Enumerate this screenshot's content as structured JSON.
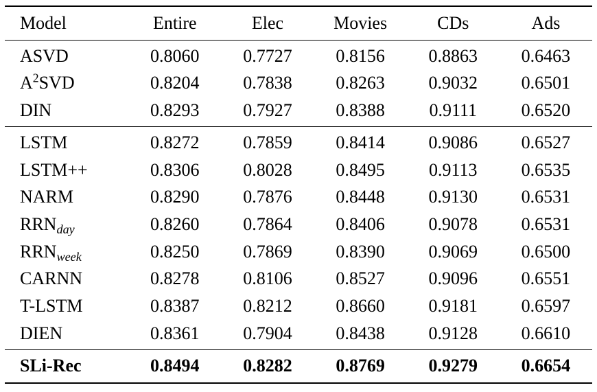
{
  "table": {
    "headers": [
      "Model",
      "Entire",
      "Elec",
      "Movies",
      "CDs",
      "Ads"
    ],
    "rows": [
      {
        "model": {
          "pre": "ASVD"
        },
        "values": [
          "0.8060",
          "0.7727",
          "0.8156",
          "0.8863",
          "0.6463"
        ]
      },
      {
        "model": {
          "pre": "A",
          "sup": "2",
          "post": "SVD"
        },
        "values": [
          "0.8204",
          "0.7838",
          "0.8263",
          "0.9032",
          "0.6501"
        ]
      },
      {
        "model": {
          "pre": "DIN"
        },
        "values": [
          "0.8293",
          "0.7927",
          "0.8388",
          "0.9111",
          "0.6520"
        ]
      },
      {
        "model": {
          "pre": "LSTM"
        },
        "values": [
          "0.8272",
          "0.7859",
          "0.8414",
          "0.9086",
          "0.6527"
        ]
      },
      {
        "model": {
          "pre": "LSTM++"
        },
        "values": [
          "0.8306",
          "0.8028",
          "0.8495",
          "0.9113",
          "0.6535"
        ]
      },
      {
        "model": {
          "pre": "NARM"
        },
        "values": [
          "0.8290",
          "0.7876",
          "0.8448",
          "0.9130",
          "0.6531"
        ]
      },
      {
        "model": {
          "pre": "RRN",
          "sub": "day"
        },
        "values": [
          "0.8260",
          "0.7864",
          "0.8406",
          "0.9078",
          "0.6531"
        ]
      },
      {
        "model": {
          "pre": "RRN",
          "sub": "week"
        },
        "values": [
          "0.8250",
          "0.7869",
          "0.8390",
          "0.9069",
          "0.6500"
        ]
      },
      {
        "model": {
          "pre": "CARNN"
        },
        "values": [
          "0.8278",
          "0.8106",
          "0.8527",
          "0.9096",
          "0.6551"
        ]
      },
      {
        "model": {
          "pre": "T-LSTM"
        },
        "values": [
          "0.8387",
          "0.8212",
          "0.8660",
          "0.9181",
          "0.6597"
        ]
      },
      {
        "model": {
          "pre": "DIEN"
        },
        "values": [
          "0.8361",
          "0.7904",
          "0.8438",
          "0.9128",
          "0.6610"
        ]
      },
      {
        "model": {
          "pre": "SLi-Rec"
        },
        "values": [
          "0.8494",
          "0.8282",
          "0.8769",
          "0.9279",
          "0.6654"
        ]
      }
    ]
  },
  "chart_data": {
    "type": "table",
    "columns": [
      "Model",
      "Entire",
      "Elec",
      "Movies",
      "CDs",
      "Ads"
    ],
    "rows": [
      [
        "ASVD",
        0.806,
        0.7727,
        0.8156,
        0.8863,
        0.6463
      ],
      [
        "A2SVD",
        0.8204,
        0.7838,
        0.8263,
        0.9032,
        0.6501
      ],
      [
        "DIN",
        0.8293,
        0.7927,
        0.8388,
        0.9111,
        0.652
      ],
      [
        "LSTM",
        0.8272,
        0.7859,
        0.8414,
        0.9086,
        0.6527
      ],
      [
        "LSTM++",
        0.8306,
        0.8028,
        0.8495,
        0.9113,
        0.6535
      ],
      [
        "NARM",
        0.829,
        0.7876,
        0.8448,
        0.913,
        0.6531
      ],
      [
        "RRN_day",
        0.826,
        0.7864,
        0.8406,
        0.9078,
        0.6531
      ],
      [
        "RRN_week",
        0.825,
        0.7869,
        0.839,
        0.9069,
        0.65
      ],
      [
        "CARNN",
        0.8278,
        0.8106,
        0.8527,
        0.9096,
        0.6551
      ],
      [
        "T-LSTM",
        0.8387,
        0.8212,
        0.866,
        0.9181,
        0.6597
      ],
      [
        "DIEN",
        0.8361,
        0.7904,
        0.8438,
        0.9128,
        0.661
      ],
      [
        "SLi-Rec",
        0.8494,
        0.8282,
        0.8769,
        0.9279,
        0.6654
      ]
    ],
    "bold_rows": [
      "SLi-Rec"
    ],
    "group_separators_after": [
      "DIN",
      "DIEN"
    ]
  }
}
